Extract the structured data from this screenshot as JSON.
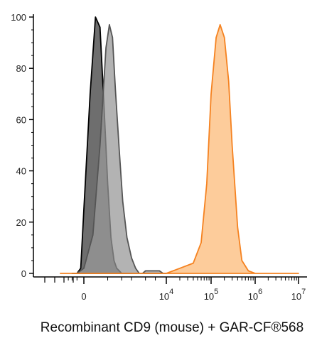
{
  "chart_data": {
    "type": "area",
    "xlabel": "Recombinant CD9 (mouse) + GAR-CF®568",
    "ylabel": "",
    "x_scale": "biexponential",
    "y_ticks": [
      0,
      20,
      40,
      60,
      80,
      100
    ],
    "ylim": [
      0,
      100
    ],
    "x_ticks": [
      {
        "value": 0,
        "base": "0",
        "exp": ""
      },
      {
        "value": 10000,
        "base": "10",
        "exp": "4"
      },
      {
        "value": 100000,
        "base": "10",
        "exp": "5"
      },
      {
        "value": 1000000,
        "base": "10",
        "exp": "6"
      },
      {
        "value": 10000000,
        "base": "10",
        "exp": "7"
      }
    ],
    "series": [
      {
        "name": "",
        "color": "#000000",
        "fill": "#4a4a4a",
        "stroke": "#000000",
        "opacity": 0.8,
        "x": [
          -1000,
          -500,
          -200,
          0,
          200,
          400,
          600,
          800,
          1000,
          1200,
          1400,
          1600,
          1800,
          2000,
          2500,
          3000
        ],
        "y": [
          0,
          0,
          2,
          25,
          70,
          100,
          96,
          65,
          35,
          14,
          5,
          2,
          1,
          0,
          0,
          0
        ]
      },
      {
        "name": "",
        "color": "#555555",
        "fill": "#9a9a9a",
        "stroke": "#555555",
        "opacity": 0.75,
        "x": [
          -500,
          0,
          300,
          600,
          900,
          1100,
          1300,
          1500,
          1800,
          2100,
          2500,
          3000,
          3500,
          4000,
          4500,
          5000,
          6000,
          7000,
          8000,
          9000,
          10000
        ],
        "y": [
          0,
          2,
          15,
          50,
          88,
          97,
          92,
          72,
          48,
          28,
          14,
          6,
          2,
          0,
          0,
          1,
          1,
          1,
          1,
          0,
          0
        ]
      },
      {
        "name": "",
        "color": "#f58220",
        "fill": "#fdc690",
        "stroke": "#f58220",
        "opacity": 0.9,
        "x": [
          -3000,
          0,
          10000,
          20000,
          40000,
          60000,
          80000,
          100000,
          130000,
          160000,
          200000,
          250000,
          300000,
          400000,
          500000,
          700000,
          1000000,
          10000000
        ],
        "y": [
          0,
          0,
          0,
          2,
          4,
          12,
          35,
          70,
          92,
          97,
          92,
          75,
          50,
          18,
          5,
          1,
          0,
          0
        ]
      }
    ]
  }
}
